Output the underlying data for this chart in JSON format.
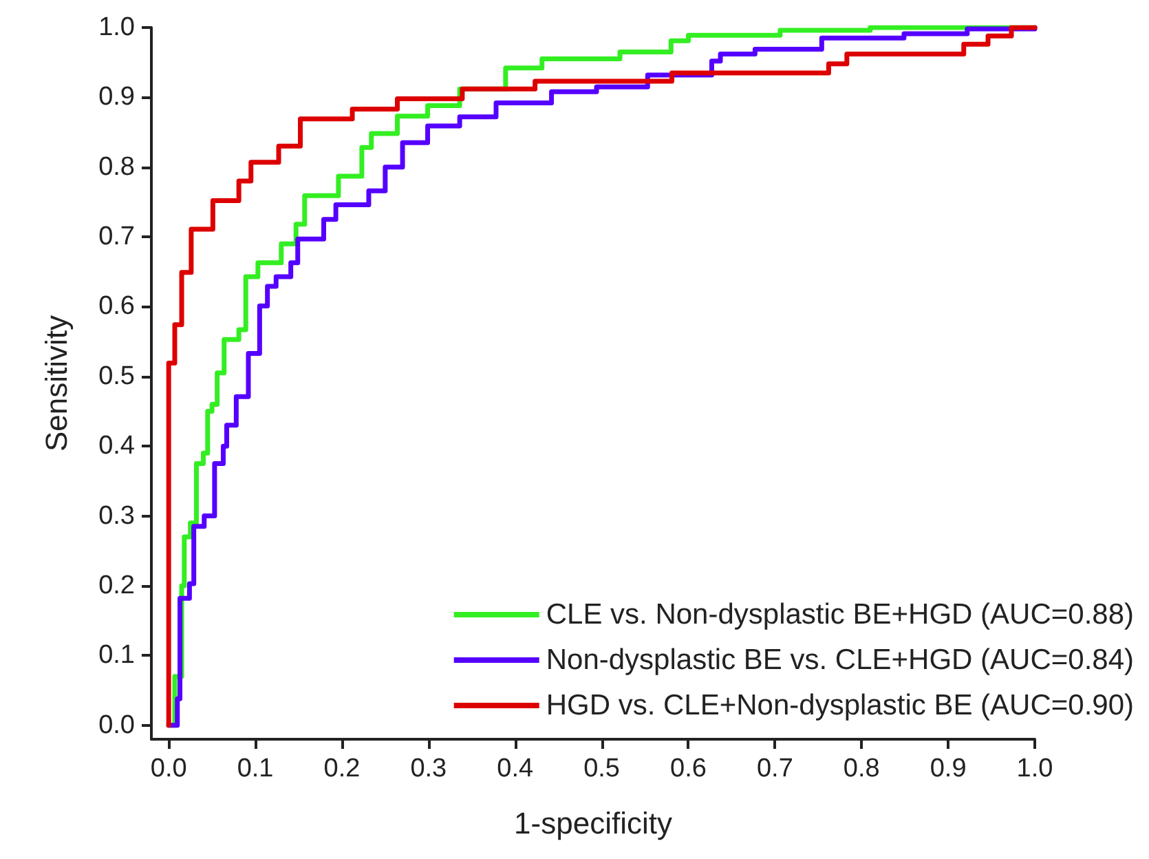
{
  "chart_data": {
    "type": "step",
    "xlabel": "1-specificity",
    "ylabel": "Sensitivity",
    "xlim": [
      -0.02,
      1.0
    ],
    "ylim": [
      -0.02,
      1.0
    ],
    "xticks": [
      {
        "value": 0,
        "label": "0.0"
      },
      {
        "value": 0.1,
        "label": "0.1"
      },
      {
        "value": 0.2,
        "label": "0.2"
      },
      {
        "value": 0.3,
        "label": "0.3"
      },
      {
        "value": 0.4,
        "label": "0.4"
      },
      {
        "value": 0.5,
        "label": "0.5"
      },
      {
        "value": 0.6,
        "label": "0.6"
      },
      {
        "value": 0.7,
        "label": "0.7"
      },
      {
        "value": 0.8,
        "label": "0.8"
      },
      {
        "value": 0.9,
        "label": "0.9"
      },
      {
        "value": 1,
        "label": "1.0"
      }
    ],
    "yticks": [
      {
        "value": 0,
        "label": "0.0"
      },
      {
        "value": 0.1,
        "label": "0.1"
      },
      {
        "value": 0.2,
        "label": "0.2"
      },
      {
        "value": 0.3,
        "label": "0.3"
      },
      {
        "value": 0.4,
        "label": "0.4"
      },
      {
        "value": 0.5,
        "label": "0.5"
      },
      {
        "value": 0.6,
        "label": "0.6"
      },
      {
        "value": 0.7,
        "label": "0.7"
      },
      {
        "value": 0.8,
        "label": "0.8"
      },
      {
        "value": 0.9,
        "label": "0.9"
      },
      {
        "value": 1,
        "label": "1.0"
      }
    ],
    "grid": false,
    "legend": "bottom right",
    "marker": "none",
    "line_style": "solid",
    "series": [
      {
        "name": "CLE vs. Non-dysplastic BE+HGD (AUC=0.88)",
        "color": "#33ee22",
        "x": [
          0,
          0.007,
          0.015,
          0.018,
          0.025,
          0.032,
          0.04,
          0.045,
          0.05,
          0.056,
          0.064,
          0.081,
          0.089,
          0.103,
          0.13,
          0.147,
          0.157,
          0.196,
          0.223,
          0.234,
          0.264,
          0.299,
          0.336,
          0.389,
          0.431,
          0.521,
          0.58,
          0.6,
          0.706,
          0.81,
          1
        ],
        "values": [
          0,
          0.07,
          0.2,
          0.27,
          0.29,
          0.375,
          0.39,
          0.45,
          0.46,
          0.505,
          0.553,
          0.567,
          0.643,
          0.663,
          0.69,
          0.718,
          0.759,
          0.787,
          0.828,
          0.848,
          0.873,
          0.888,
          0.912,
          0.942,
          0.955,
          0.965,
          0.981,
          0.989,
          0.996,
          1,
          1
        ]
      },
      {
        "name": "Non-dysplastic BE vs. CLE+HGD (AUC=0.84)",
        "color": "#5500ff",
        "x": [
          0,
          0.01,
          0.013,
          0.024,
          0.029,
          0.041,
          0.053,
          0.063,
          0.067,
          0.078,
          0.092,
          0.105,
          0.114,
          0.124,
          0.141,
          0.149,
          0.179,
          0.193,
          0.231,
          0.25,
          0.27,
          0.299,
          0.336,
          0.378,
          0.442,
          0.494,
          0.553,
          0.627,
          0.637,
          0.677,
          0.754,
          0.849,
          0.922,
          1
        ],
        "values": [
          0,
          0.038,
          0.182,
          0.203,
          0.285,
          0.3,
          0.375,
          0.4,
          0.43,
          0.471,
          0.533,
          0.601,
          0.629,
          0.643,
          0.663,
          0.697,
          0.725,
          0.746,
          0.766,
          0.8,
          0.835,
          0.859,
          0.872,
          0.892,
          0.908,
          0.915,
          0.932,
          0.952,
          0.962,
          0.969,
          0.985,
          0.991,
          0.998,
          1
        ]
      },
      {
        "name": "HGD vs. CLE+Non-dysplastic BE (AUC=0.90)",
        "color": "#dd0000",
        "x": [
          0,
          0,
          0.007,
          0.015,
          0.026,
          0.051,
          0.081,
          0.095,
          0.127,
          0.152,
          0.212,
          0.264,
          0.339,
          0.423,
          0.581,
          0.762,
          0.783,
          0.918,
          0.946,
          0.973,
          1
        ],
        "values": [
          0,
          0.519,
          0.574,
          0.649,
          0.711,
          0.752,
          0.78,
          0.807,
          0.83,
          0.869,
          0.883,
          0.898,
          0.912,
          0.923,
          0.935,
          0.948,
          0.962,
          0.976,
          0.988,
          1,
          1
        ]
      }
    ]
  }
}
